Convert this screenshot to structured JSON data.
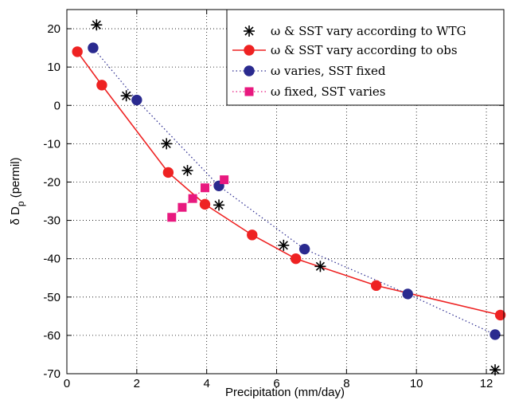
{
  "chart_data": {
    "type": "scatter",
    "xlabel": "Precipitation (mm/day)",
    "ylabel": "δ D_p (permil)",
    "ylabel_main": "δ D",
    "ylabel_sub": "p",
    "ylabel_tail": " (permil)",
    "xlim": [
      0,
      12.5
    ],
    "ylim": [
      -70,
      25
    ],
    "xticks": [
      0,
      2,
      4,
      6,
      8,
      10,
      12
    ],
    "yticks": [
      -70,
      -60,
      -50,
      -40,
      -30,
      -20,
      -10,
      0,
      10,
      20
    ],
    "grid": "dotted",
    "legend_position": "top-right",
    "series": [
      {
        "name": "ω & SST vary according to WTG",
        "marker": "asterisk",
        "line": "none",
        "color": "#000000",
        "x": [
          0.85,
          1.7,
          2.85,
          3.45,
          4.35,
          6.2,
          7.25,
          12.25
        ],
        "y": [
          21,
          2.5,
          -10,
          -17,
          -26,
          -36.5,
          -42,
          -69
        ]
      },
      {
        "name": "ω & SST vary according to obs",
        "marker": "circle",
        "line": "solid",
        "color": "#ee2222",
        "x": [
          0.3,
          1.0,
          2.9,
          3.95,
          5.3,
          6.55,
          8.85,
          12.4
        ],
        "y": [
          14,
          5.3,
          -17.5,
          -25.8,
          -33.8,
          -40,
          -47,
          -54.7
        ]
      },
      {
        "name": "ω varies, SST fixed",
        "marker": "circle",
        "line": "dotted",
        "color": "#2a2a8f",
        "x": [
          0.75,
          2.0,
          4.35,
          6.8,
          9.75,
          12.25
        ],
        "y": [
          15,
          1.4,
          -21,
          -37.5,
          -49.2,
          -59.8
        ]
      },
      {
        "name": "ω fixed, SST varies",
        "marker": "square",
        "line": "dotted",
        "color": "#e8197f",
        "x": [
          3.0,
          3.3,
          3.6,
          3.95,
          4.5
        ],
        "y": [
          -29.2,
          -26.6,
          -24.3,
          -21.5,
          -19.4
        ]
      }
    ]
  }
}
